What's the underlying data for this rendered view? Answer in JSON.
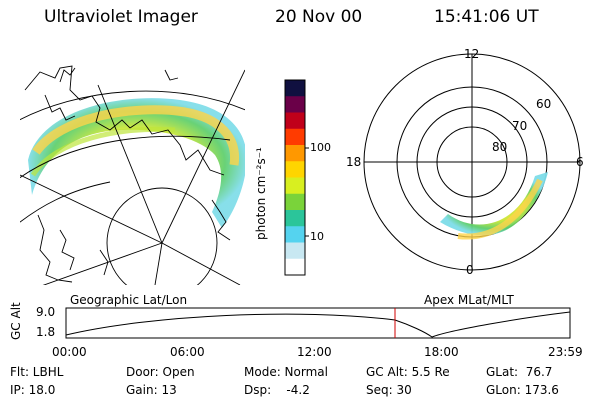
{
  "header": {
    "instrument": "Ultraviolet Imager",
    "date": "20 Nov 00",
    "time": "15:41:06 UT"
  },
  "colorbar": {
    "unit_label": "photon cm⁻²s⁻¹",
    "ticks": [
      "100",
      "10"
    ],
    "scale": "log",
    "colors": [
      "#101040",
      "#6a0048",
      "#c0001a",
      "#ff3b00",
      "#ff9800",
      "#ffd500",
      "#d8ef20",
      "#7ad33a",
      "#2bc59a",
      "#55d3ef",
      "#c8e8f2",
      "#ffffff"
    ]
  },
  "polar_plot": {
    "mlt_labels": {
      "top": "12",
      "left": "18",
      "right": "6",
      "bottom": "0"
    },
    "mlat_labels": [
      "60",
      "70",
      "80"
    ]
  },
  "altitude_panel": {
    "axis_title": "GC Alt",
    "y_ticks": [
      "9.0",
      "1.8"
    ],
    "left_label": "Geographic Lat/Lon",
    "right_label": "Apex MLat/MLT",
    "time_ticks": [
      "00:00",
      "06:00",
      "12:00",
      "18:00",
      "23:59"
    ],
    "marker_time": "15:41"
  },
  "footer": {
    "flt": "Flt: LBHL",
    "ip": "IP: 18.0",
    "door": "Door: Open",
    "gain": "Gain: 13",
    "mode": "Mode: Normal",
    "dsp": "Dsp:    -4.2",
    "gc_alt": "GC Alt: 5.5 Re",
    "seq": "Seq: 30",
    "glat": "GLat:  76.7",
    "glon": "GLon: 173.6"
  }
}
